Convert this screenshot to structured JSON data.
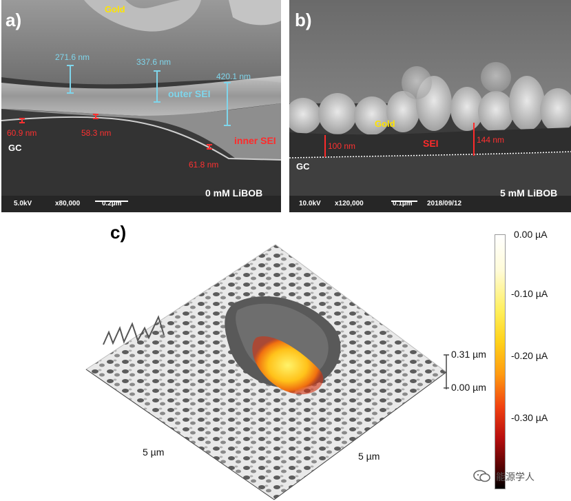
{
  "panel_a": {
    "letter": "a)",
    "gold": "Gold",
    "gc": "GC",
    "blue_measurements": [
      "271.6 nm",
      "337.6 nm",
      "420.1 nm"
    ],
    "outer_sei": "outer SEI",
    "inner_sei": "inner SEI",
    "red_measurements": [
      "60.9 nm",
      "58.3 nm",
      "61.8 nm"
    ],
    "info": {
      "voltage": "5.0kV",
      "magnification": "x80,000",
      "scale": "0.2µm"
    },
    "condition": "0 mM LiBOB"
  },
  "panel_b": {
    "letter": "b)",
    "gold": "Gold",
    "gc": "GC",
    "sei": "SEI",
    "measurements": [
      "100 nm",
      "144 nm"
    ],
    "info": {
      "voltage": "10.0kV",
      "magnification": "x120,000",
      "scale": "0.1µm",
      "date": "2018/09/12"
    },
    "condition": "5 mM LiBOB"
  },
  "panel_c": {
    "letter": "c)",
    "z_axis": [
      "0.31 µm",
      "0.00 µm"
    ],
    "x_axis": "5 µm",
    "y_axis": "5 µm",
    "colorbar_ticks": [
      "0.00 µA",
      "-0.10 µA",
      "-0.20 µA",
      "-0.30 µA"
    ],
    "watermark": "能源学人"
  },
  "colors": {
    "sem_blue": "#7fd6ec",
    "sem_red": "#ff3030",
    "sem_gold": "#ffe400"
  }
}
